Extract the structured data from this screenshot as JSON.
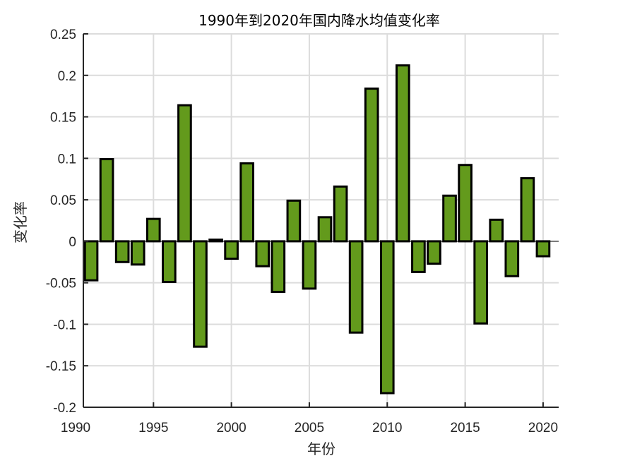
{
  "chart_data": {
    "type": "bar",
    "title": "1990年到2020年国内降水均值变化率",
    "xlabel": "年份",
    "ylabel": "变化率",
    "xlim": [
      1990.5,
      2021
    ],
    "ylim": [
      -0.2,
      0.25
    ],
    "xticks": [
      1990,
      1995,
      2000,
      2005,
      2010,
      2015,
      2020
    ],
    "yticks": [
      0.25,
      0.2,
      0.15,
      0.1,
      0.05,
      0,
      -0.05,
      -0.1,
      -0.15,
      -0.2
    ],
    "ytick_labels": [
      "0.25",
      "0.2",
      "0.15",
      "0.1",
      "0.05",
      "0",
      "-0.05",
      "-0.1",
      "-0.15",
      "-0.2"
    ],
    "grid": true,
    "bar_color": "#639A1C",
    "edge_color": "#000000",
    "x": [
      1991,
      1992,
      1993,
      1994,
      1995,
      1996,
      1997,
      1998,
      1999,
      2000,
      2001,
      2002,
      2003,
      2004,
      2005,
      2006,
      2007,
      2008,
      2009,
      2010,
      2011,
      2012,
      2013,
      2014,
      2015,
      2016,
      2017,
      2018,
      2019,
      2020
    ],
    "values": [
      -0.047,
      0.099,
      -0.025,
      -0.028,
      0.027,
      -0.049,
      0.164,
      -0.127,
      0.002,
      -0.021,
      0.094,
      -0.03,
      -0.061,
      0.049,
      -0.057,
      0.029,
      0.066,
      -0.11,
      0.184,
      -0.183,
      0.212,
      -0.037,
      -0.027,
      0.055,
      0.092,
      -0.099,
      0.026,
      -0.042,
      0.076,
      -0.018
    ]
  }
}
